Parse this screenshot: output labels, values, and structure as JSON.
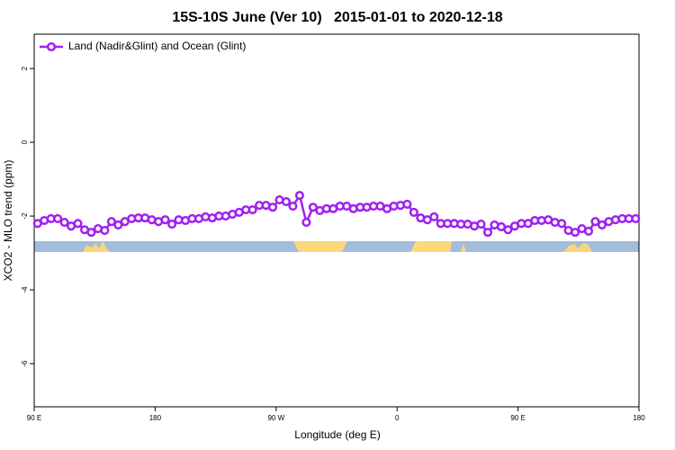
{
  "chart_data": {
    "type": "line",
    "title": "15S-10S June (Ver 10)   2015-01-01 to 2020-12-18",
    "x_label": "Longitude (deg E)",
    "y_label": "XCO2 - MLO trend (ppm)",
    "xlim": [
      90,
      540
    ],
    "ylim": [
      -7.17,
      2.93
    ],
    "xticks": [
      {
        "value": 90,
        "label": "90 E"
      },
      {
        "value": 180,
        "label": "180"
      },
      {
        "value": 270,
        "label": "90 W"
      },
      {
        "value": 360,
        "label": "0"
      },
      {
        "value": 450,
        "label": "90 E"
      },
      {
        "value": 540,
        "label": "180"
      }
    ],
    "yticks": [
      2,
      0,
      -2,
      -4,
      -6
    ],
    "legend": "top-left",
    "series": [
      {
        "name": "Land (Nadir&Glint) and Ocean (Glint)",
        "color": "#a020f0",
        "x": [
          92.5,
          97.5,
          102.5,
          107.5,
          112.5,
          117.5,
          122.5,
          127.5,
          132.5,
          137.5,
          142.5,
          147.5,
          152.5,
          157.5,
          162.5,
          167.5,
          172.5,
          177.5,
          182.5,
          187.5,
          192.5,
          197.5,
          202.5,
          207.5,
          212.5,
          217.5,
          222.5,
          227.5,
          232.5,
          237.5,
          242.5,
          247.5,
          252.5,
          257.5,
          262.5,
          267.5,
          272.5,
          277.5,
          282.5,
          287.5,
          292.5,
          297.5,
          302.5,
          307.5,
          312.5,
          317.5,
          322.5,
          327.5,
          332.5,
          337.5,
          342.5,
          347.5,
          352.5,
          357.5,
          362.5,
          367.5,
          372.5,
          377.5,
          382.5,
          387.5,
          392.5,
          397.5,
          402.5,
          407.5,
          412.5,
          417.5,
          422.5,
          427.5,
          432.5,
          437.5,
          442.5,
          447.5,
          452.5,
          457.5,
          462.5,
          467.5,
          472.5,
          477.5,
          482.5,
          487.5,
          492.5,
          497.5,
          502.5,
          507.5,
          512.5,
          517.5,
          522.5,
          527.5,
          532.5,
          537.5
        ],
        "values": [
          -2.2,
          -2.12,
          -2.07,
          -2.07,
          -2.17,
          -2.27,
          -2.2,
          -2.37,
          -2.44,
          -2.34,
          -2.39,
          -2.15,
          -2.24,
          -2.15,
          -2.07,
          -2.05,
          -2.05,
          -2.1,
          -2.15,
          -2.1,
          -2.22,
          -2.1,
          -2.12,
          -2.07,
          -2.07,
          -2.02,
          -2.05,
          -2.0,
          -2.0,
          -1.95,
          -1.9,
          -1.83,
          -1.83,
          -1.71,
          -1.71,
          -1.76,
          -1.56,
          -1.61,
          -1.73,
          -1.44,
          -2.17,
          -1.76,
          -1.85,
          -1.8,
          -1.8,
          -1.73,
          -1.73,
          -1.8,
          -1.76,
          -1.76,
          -1.73,
          -1.73,
          -1.8,
          -1.73,
          -1.71,
          -1.68,
          -1.9,
          -2.05,
          -2.1,
          -2.02,
          -2.2,
          -2.2,
          -2.2,
          -2.22,
          -2.22,
          -2.27,
          -2.22,
          -2.44,
          -2.24,
          -2.29,
          -2.37,
          -2.27,
          -2.2,
          -2.2,
          -2.12,
          -2.12,
          -2.1,
          -2.17,
          -2.2,
          -2.39,
          -2.44,
          -2.34,
          -2.41,
          -2.15,
          -2.24,
          -2.15,
          -2.1,
          -2.07,
          -2.07,
          -2.07
        ]
      }
    ]
  }
}
